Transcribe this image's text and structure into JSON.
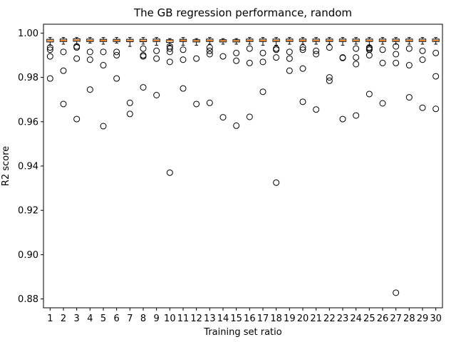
{
  "chart_data": {
    "type": "box",
    "title": "The GB regression performance, random",
    "xlabel": "Training set ratio",
    "ylabel": "R2 score",
    "ylim": [
      0.876,
      1.004
    ],
    "yticks": [
      "0.88",
      "0.90",
      "0.92",
      "0.94",
      "0.96",
      "0.98",
      "1.00"
    ],
    "ytick_values": [
      0.88,
      0.9,
      0.92,
      0.94,
      0.96,
      0.98,
      1.0
    ],
    "categories": [
      "1",
      "2",
      "3",
      "4",
      "5",
      "6",
      "7",
      "8",
      "9",
      "10",
      "11",
      "12",
      "13",
      "14",
      "15",
      "16",
      "17",
      "18",
      "19",
      "20",
      "21",
      "22",
      "23",
      "24",
      "25",
      "26",
      "27",
      "28",
      "29",
      "30"
    ],
    "grid": false,
    "colors": {
      "box": "#000000",
      "median": "#ff7f0e",
      "flier": "#000000"
    },
    "boxes": [
      {
        "q1": 0.996,
        "median": 0.9966,
        "q3": 0.9972,
        "whislo": 0.9945,
        "whishi": 0.998,
        "fliers": [
          0.9935,
          0.9925,
          0.9895,
          0.9795
        ]
      },
      {
        "q1": 0.9962,
        "median": 0.9967,
        "q3": 0.9973,
        "whislo": 0.995,
        "whishi": 0.998,
        "fliers": [
          0.9915,
          0.983,
          0.968
        ]
      },
      {
        "q1": 0.9963,
        "median": 0.9968,
        "q3": 0.9974,
        "whislo": 0.995,
        "whishi": 0.998,
        "fliers": [
          0.994,
          0.9935,
          0.9885,
          0.9612
        ]
      },
      {
        "q1": 0.9962,
        "median": 0.9967,
        "q3": 0.9973,
        "whislo": 0.9955,
        "whishi": 0.998,
        "fliers": [
          0.9915,
          0.988,
          0.9745
        ]
      },
      {
        "q1": 0.9962,
        "median": 0.9967,
        "q3": 0.9972,
        "whislo": 0.995,
        "whishi": 0.998,
        "fliers": [
          0.9915,
          0.9855,
          0.958
        ]
      },
      {
        "q1": 0.9962,
        "median": 0.9967,
        "q3": 0.9972,
        "whislo": 0.9955,
        "whishi": 0.998,
        "fliers": [
          0.9915,
          0.99,
          0.9795
        ]
      },
      {
        "q1": 0.9961,
        "median": 0.9966,
        "q3": 0.9972,
        "whislo": 0.994,
        "whishi": 0.998,
        "fliers": [
          0.9685,
          0.9635
        ]
      },
      {
        "q1": 0.9961,
        "median": 0.9966,
        "q3": 0.9972,
        "whislo": 0.995,
        "whishi": 0.998,
        "fliers": [
          0.993,
          0.99,
          0.9895,
          0.9755
        ]
      },
      {
        "q1": 0.9962,
        "median": 0.9967,
        "q3": 0.9973,
        "whislo": 0.9945,
        "whishi": 0.998,
        "fliers": [
          0.992,
          0.9885,
          0.972
        ]
      },
      {
        "q1": 0.9958,
        "median": 0.9965,
        "q3": 0.997,
        "whislo": 0.9945,
        "whishi": 0.9975,
        "fliers": [
          0.994,
          0.993,
          0.9915,
          0.987,
          0.937
        ]
      },
      {
        "q1": 0.9962,
        "median": 0.9967,
        "q3": 0.9972,
        "whislo": 0.9945,
        "whishi": 0.998,
        "fliers": [
          0.9925,
          0.988,
          0.975
        ]
      },
      {
        "q1": 0.996,
        "median": 0.9965,
        "q3": 0.997,
        "whislo": 0.9945,
        "whishi": 0.9975,
        "fliers": [
          0.9885,
          0.968
        ]
      },
      {
        "q1": 0.9962,
        "median": 0.9967,
        "q3": 0.9973,
        "whislo": 0.995,
        "whishi": 0.998,
        "fliers": [
          0.9935,
          0.992,
          0.9905,
          0.9685
        ]
      },
      {
        "q1": 0.996,
        "median": 0.9965,
        "q3": 0.997,
        "whislo": 0.995,
        "whishi": 0.9975,
        "fliers": [
          0.9895,
          0.962
        ]
      },
      {
        "q1": 0.996,
        "median": 0.9965,
        "q3": 0.997,
        "whislo": 0.995,
        "whishi": 0.9975,
        "fliers": [
          0.991,
          0.9875,
          0.9582
        ]
      },
      {
        "q1": 0.9962,
        "median": 0.9967,
        "q3": 0.9973,
        "whislo": 0.995,
        "whishi": 0.998,
        "fliers": [
          0.993,
          0.9865,
          0.9622
        ]
      },
      {
        "q1": 0.9962,
        "median": 0.9967,
        "q3": 0.9973,
        "whislo": 0.9945,
        "whishi": 0.998,
        "fliers": [
          0.991,
          0.987,
          0.9735
        ]
      },
      {
        "q1": 0.9962,
        "median": 0.9967,
        "q3": 0.9973,
        "whislo": 0.9945,
        "whishi": 0.998,
        "fliers": [
          0.993,
          0.9925,
          0.989,
          0.9325
        ]
      },
      {
        "q1": 0.9962,
        "median": 0.9967,
        "q3": 0.9973,
        "whislo": 0.995,
        "whishi": 0.998,
        "fliers": [
          0.9915,
          0.9885,
          0.983
        ]
      },
      {
        "q1": 0.9962,
        "median": 0.9967,
        "q3": 0.9973,
        "whislo": 0.995,
        "whishi": 0.998,
        "fliers": [
          0.9935,
          0.9925,
          0.984,
          0.969
        ]
      },
      {
        "q1": 0.9962,
        "median": 0.9967,
        "q3": 0.9973,
        "whislo": 0.995,
        "whishi": 0.998,
        "fliers": [
          0.992,
          0.9905,
          0.9655
        ]
      },
      {
        "q1": 0.9962,
        "median": 0.9967,
        "q3": 0.9973,
        "whislo": 0.995,
        "whishi": 0.998,
        "fliers": [
          0.9935,
          0.98,
          0.9785
        ]
      },
      {
        "q1": 0.9962,
        "median": 0.9967,
        "q3": 0.9973,
        "whislo": 0.9945,
        "whishi": 0.998,
        "fliers": [
          0.989,
          0.9888,
          0.9612
        ]
      },
      {
        "q1": 0.9962,
        "median": 0.9967,
        "q3": 0.9973,
        "whislo": 0.995,
        "whishi": 0.998,
        "fliers": [
          0.993,
          0.989,
          0.986,
          0.9628
        ]
      },
      {
        "q1": 0.9962,
        "median": 0.9967,
        "q3": 0.9973,
        "whislo": 0.9945,
        "whishi": 0.998,
        "fliers": [
          0.9935,
          0.993,
          0.9925,
          0.99,
          0.9725
        ]
      },
      {
        "q1": 0.9962,
        "median": 0.9967,
        "q3": 0.9973,
        "whislo": 0.995,
        "whishi": 0.998,
        "fliers": [
          0.9925,
          0.9865,
          0.9683
        ]
      },
      {
        "q1": 0.9962,
        "median": 0.9967,
        "q3": 0.9973,
        "whislo": 0.995,
        "whishi": 0.998,
        "fliers": [
          0.994,
          0.9905,
          0.9865,
          0.8828
        ]
      },
      {
        "q1": 0.9962,
        "median": 0.9967,
        "q3": 0.9973,
        "whislo": 0.995,
        "whishi": 0.998,
        "fliers": [
          0.993,
          0.9855,
          0.971
        ]
      },
      {
        "q1": 0.9962,
        "median": 0.9967,
        "q3": 0.9973,
        "whislo": 0.995,
        "whishi": 0.998,
        "fliers": [
          0.992,
          0.988,
          0.9663
        ]
      },
      {
        "q1": 0.9962,
        "median": 0.9967,
        "q3": 0.9973,
        "whislo": 0.995,
        "whishi": 0.998,
        "fliers": [
          0.991,
          0.9805,
          0.9658
        ]
      }
    ]
  }
}
